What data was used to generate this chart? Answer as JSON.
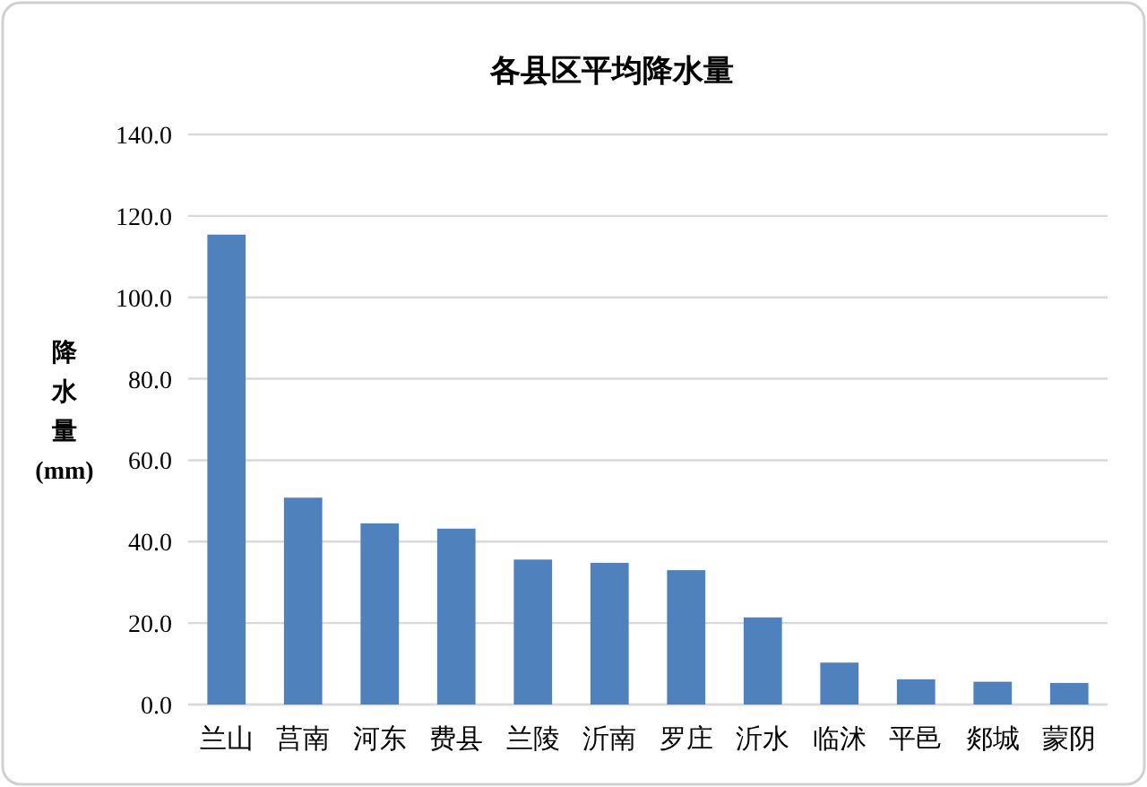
{
  "chart_data": {
    "type": "bar",
    "title": "各县区平均降水量",
    "ylabel": "降水量(mm)",
    "categories": [
      "兰山",
      "莒南",
      "河东",
      "费县",
      "兰陵",
      "沂南",
      "罗庄",
      "沂水",
      "临沭",
      "平邑",
      "郯城",
      "蒙阴"
    ],
    "values": [
      115.4,
      50.8,
      44.5,
      43.2,
      35.6,
      34.8,
      33.0,
      21.4,
      10.3,
      6.2,
      5.6,
      5.3
    ],
    "color": "#4f81bd",
    "ylim": [
      0,
      140
    ],
    "yticks": [
      {
        "value": 0,
        "label": "0.0"
      },
      {
        "value": 20,
        "label": "20.0"
      },
      {
        "value": 40,
        "label": "40.0"
      },
      {
        "value": 60,
        "label": "60.0"
      },
      {
        "value": 80,
        "label": "80.0"
      },
      {
        "value": 100,
        "label": "100.0"
      },
      {
        "value": 120,
        "label": "120.0"
      },
      {
        "value": 140,
        "label": "140.0"
      }
    ],
    "grid": "y"
  }
}
